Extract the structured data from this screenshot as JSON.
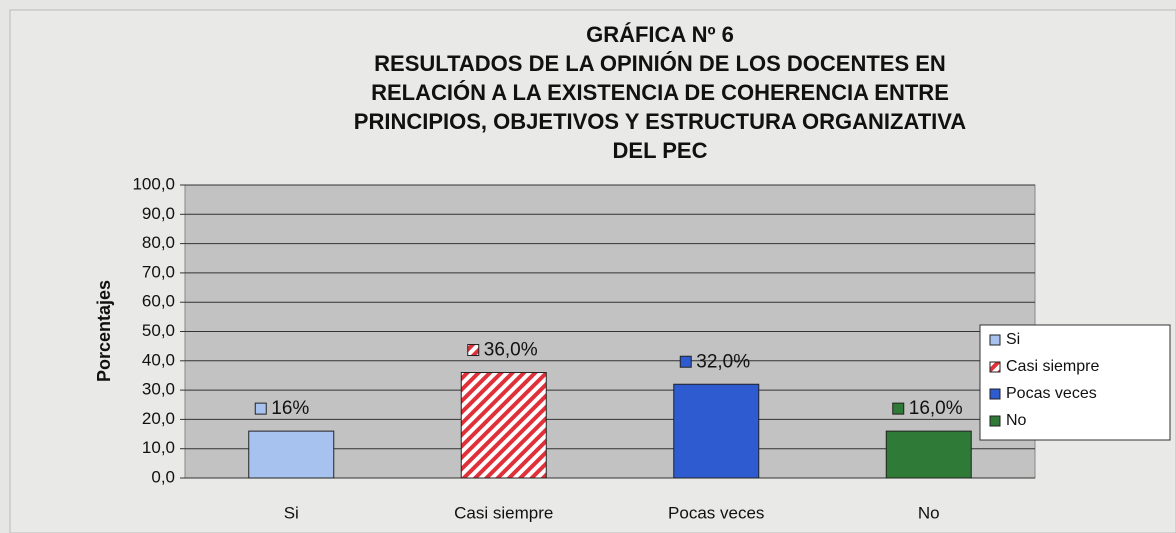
{
  "chart_data": {
    "type": "bar",
    "title": [
      "GRÁFICA Nº 6",
      "RESULTADOS DE LA OPINIÓN DE LOS DOCENTES EN",
      "RELACIÓN A LA EXISTENCIA DE COHERENCIA ENTRE",
      "PRINCIPIOS, OBJETIVOS Y ESTRUCTURA ORGANIZATIVA",
      "DEL PEC"
    ],
    "ylabel": "Porcentajes",
    "categories": [
      "Si",
      "Casi siempre",
      "Pocas veces",
      "No"
    ],
    "values": [
      16,
      36,
      32,
      16
    ],
    "value_labels": [
      "16%",
      "36,0%",
      "32,0%",
      "16,0%"
    ],
    "colors": [
      "#a8c2f0",
      "#e0303a",
      "#2e5bd0",
      "#2f7a36"
    ],
    "hatched": [
      false,
      true,
      false,
      false
    ],
    "ylim": [
      0,
      100
    ],
    "yticks": [
      {
        "value": 0,
        "label": "0,0"
      },
      {
        "value": 10,
        "label": "10,0"
      },
      {
        "value": 20,
        "label": "20,0"
      },
      {
        "value": 30,
        "label": "30,0"
      },
      {
        "value": 40,
        "label": "40,0"
      },
      {
        "value": 50,
        "label": "50,0"
      },
      {
        "value": 60,
        "label": "60,0"
      },
      {
        "value": 70,
        "label": "70,0"
      },
      {
        "value": 80,
        "label": "80,0"
      },
      {
        "value": 90,
        "label": "90,0"
      },
      {
        "value": 100,
        "label": "100,0"
      }
    ],
    "grid": true,
    "legend": "right"
  }
}
